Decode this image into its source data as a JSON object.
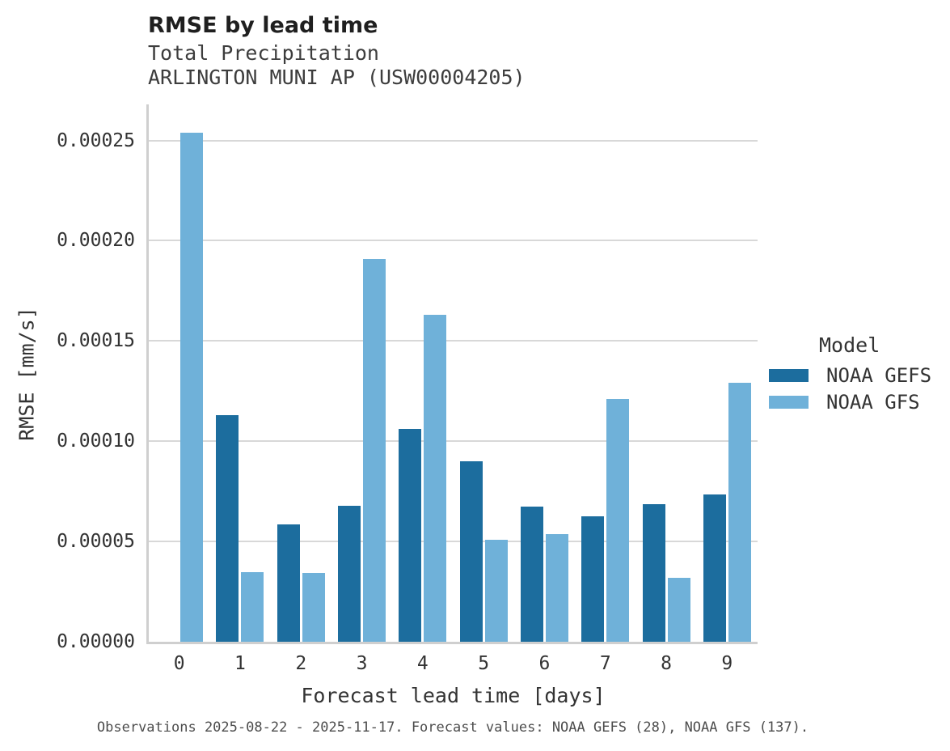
{
  "header": {
    "title": "RMSE by lead time",
    "subtitle1": "Total Precipitation",
    "subtitle2": "ARLINGTON MUNI AP (USW00004205)"
  },
  "axes": {
    "x_title": "Forecast lead time [days]",
    "y_title": "RMSE [mm/s]"
  },
  "legend": {
    "title": "Model"
  },
  "caption": {
    "text": "Observations 2025-08-22 - 2025-11-17. Forecast values: NOAA GEFS (28), NOAA GFS (137)."
  },
  "chart_data": {
    "type": "bar",
    "title": "RMSE by lead time",
    "subtitle": [
      "Total Precipitation",
      "ARLINGTON MUNI AP (USW00004205)"
    ],
    "xlabel": "Forecast lead time [days]",
    "ylabel": "RMSE [mm/s]",
    "categories": [
      "0",
      "1",
      "2",
      "3",
      "4",
      "5",
      "6",
      "7",
      "8",
      "9"
    ],
    "series": [
      {
        "name": "NOAA GEFS",
        "color": "#1c6d9e",
        "values": [
          null,
          0.000113,
          5.85e-05,
          6.78e-05,
          0.0001063,
          9e-05,
          6.76e-05,
          6.26e-05,
          6.87e-05,
          7.36e-05
        ]
      },
      {
        "name": "NOAA GFS",
        "color": "#6fb1d9",
        "values": [
          0.000254,
          3.47e-05,
          3.43e-05,
          0.000191,
          0.000163,
          5.08e-05,
          5.35e-05,
          0.000121,
          3.17e-05,
          0.000129
        ]
      }
    ],
    "ylim": [
      0,
      0.000268
    ],
    "ytick_step": 5e-05,
    "yticks": [
      "0.00000",
      "0.00005",
      "0.00010",
      "0.00015",
      "0.00020",
      "0.00025"
    ],
    "grid": true,
    "legend_title": "Model",
    "legend_position": "right",
    "caption": "Observations 2025-08-22 - 2025-11-17. Forecast values: NOAA GEFS (28), NOAA GFS (137)."
  },
  "style": {
    "grid_color": "#d8d8d8",
    "spine_color": "#cfcfcf",
    "series_colors": {
      "noaa_gefs": "#1c6d9e",
      "noaa_gfs": "#6fb1d9"
    }
  }
}
